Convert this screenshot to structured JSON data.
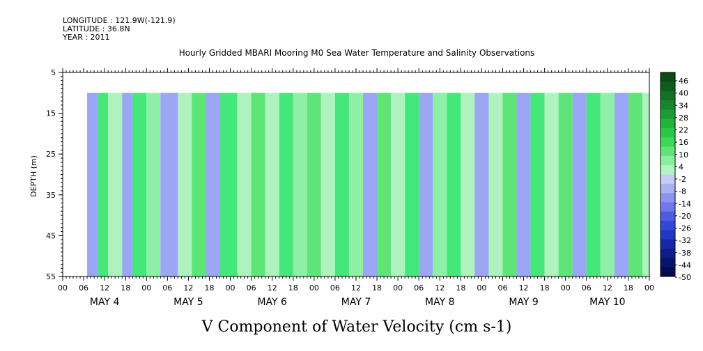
{
  "header": {
    "longitude": "LONGITUDE : 121.9W(-121.9)",
    "latitude": "LATITUDE : 36.8N",
    "year": "YEAR : 2011"
  },
  "chart_data": {
    "type": "heatmap",
    "title": "Hourly Gridded MBARI Mooring M0 Sea Water Temperature and Salinity Observations",
    "xlabel": "V Component of Water Velocity (cm s-1)",
    "ylabel": "DEPTH (m)",
    "ylim": [
      55,
      5
    ],
    "yticks": [
      5,
      15,
      25,
      35,
      45,
      55
    ],
    "hour_ticks": [
      "00",
      "06",
      "12",
      "18",
      "00",
      "06",
      "12",
      "18",
      "00",
      "06",
      "12",
      "18",
      "00",
      "06",
      "12",
      "18",
      "00",
      "06",
      "12",
      "18",
      "00",
      "06",
      "12",
      "18",
      "00",
      "06",
      "12",
      "18",
      "00"
    ],
    "day_labels": [
      "MAY 4",
      "MAY 5",
      "MAY 6",
      "MAY 7",
      "MAY 8",
      "MAY 9",
      "MAY 10"
    ],
    "data_depth_range": [
      10,
      55
    ],
    "colorbar": {
      "labels": [
        "46",
        "40",
        "34",
        "28",
        "22",
        "16",
        "10",
        "4",
        "-2",
        "-8",
        "-14",
        "-20",
        "-26",
        "-32",
        "-38",
        "-44",
        "-50"
      ],
      "colors": [
        "#0c4a16",
        "#0f5c1c",
        "#137024",
        "#17852b",
        "#1b9b33",
        "#20b43c",
        "#27c845",
        "#3cd858",
        "#5ee477",
        "#8aeea0",
        "#b0f4c0",
        "#c8ccf2",
        "#aab0f0",
        "#8c94ee",
        "#6f78ea",
        "#4f5ce2",
        "#3446d8",
        "#2236c4",
        "#1529a8",
        "#0d1e88",
        "#08146a",
        "#040b4f"
      ]
    },
    "velocity_bands": [
      {
        "day_hour": 7,
        "color": "#9ba6f4"
      },
      {
        "day_hour": 10,
        "color": "#44e87a"
      },
      {
        "day_hour": 13,
        "color": "#aef2bd"
      },
      {
        "day_hour": 17,
        "color": "#9ba6f4"
      },
      {
        "day_hour": 20,
        "color": "#44e87a"
      },
      {
        "day_hour": 24,
        "color": "#8ef0a6"
      },
      {
        "day_hour": 28,
        "color": "#9ba6f4"
      },
      {
        "day_hour": 33,
        "color": "#aef2bd"
      },
      {
        "day_hour": 37,
        "color": "#5ee477"
      },
      {
        "day_hour": 41,
        "color": "#9ba6f4"
      },
      {
        "day_hour": 45,
        "color": "#44e87a"
      },
      {
        "day_hour": 50,
        "color": "#aef2bd"
      },
      {
        "day_hour": 54,
        "color": "#5ee477"
      },
      {
        "day_hour": 58,
        "color": "#aef2bd"
      },
      {
        "day_hour": 62,
        "color": "#44e87a"
      },
      {
        "day_hour": 66,
        "color": "#8ef0a6"
      },
      {
        "day_hour": 70,
        "color": "#5ee477"
      },
      {
        "day_hour": 74,
        "color": "#aef2bd"
      },
      {
        "day_hour": 78,
        "color": "#44e87a"
      },
      {
        "day_hour": 82,
        "color": "#8ef0a6"
      },
      {
        "day_hour": 86,
        "color": "#9ba6f4"
      },
      {
        "day_hour": 90,
        "color": "#5ee477"
      },
      {
        "day_hour": 94,
        "color": "#aef2bd"
      },
      {
        "day_hour": 98,
        "color": "#44e87a"
      },
      {
        "day_hour": 102,
        "color": "#9ba6f4"
      },
      {
        "day_hour": 106,
        "color": "#8ef0a6"
      },
      {
        "day_hour": 110,
        "color": "#44e87a"
      },
      {
        "day_hour": 114,
        "color": "#aef2bd"
      },
      {
        "day_hour": 118,
        "color": "#9ba6f4"
      },
      {
        "day_hour": 122,
        "color": "#aef2bd"
      },
      {
        "day_hour": 126,
        "color": "#5ee477"
      },
      {
        "day_hour": 130,
        "color": "#9ba6f4"
      },
      {
        "day_hour": 134,
        "color": "#44e87a"
      },
      {
        "day_hour": 138,
        "color": "#aef2bd"
      },
      {
        "day_hour": 142,
        "color": "#5ee477"
      },
      {
        "day_hour": 146,
        "color": "#9ba6f4"
      },
      {
        "day_hour": 150,
        "color": "#44e87a"
      },
      {
        "day_hour": 154,
        "color": "#8ef0a6"
      },
      {
        "day_hour": 158,
        "color": "#9ba6f4"
      },
      {
        "day_hour": 162,
        "color": "#5ee477"
      },
      {
        "day_hour": 166,
        "color": "#aef2bd"
      }
    ]
  }
}
